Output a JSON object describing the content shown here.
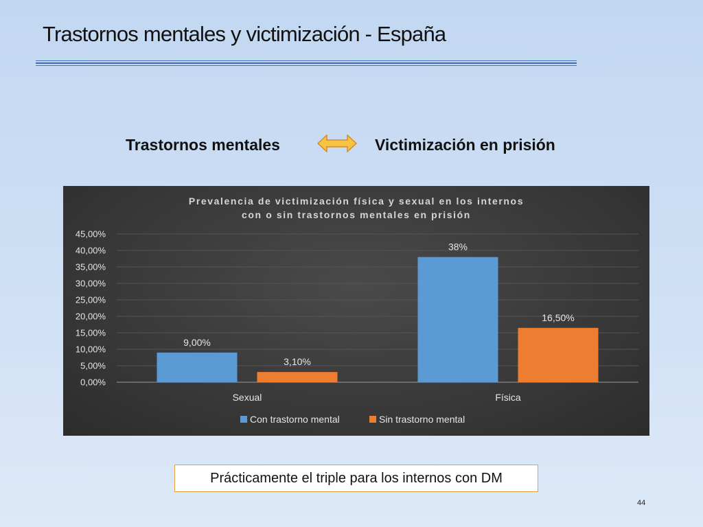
{
  "slide": {
    "title": "Trastornos mentales y victimización - España",
    "left_concept": "Trastornos mentales",
    "right_concept": "Victimización en prisión",
    "note": "Prácticamente el triple para los internos con DM",
    "page_number": "44"
  },
  "colors": {
    "accent_rule": "#3f69b3",
    "arrow_fill": "#f6c343",
    "arrow_stroke": "#d98a2b",
    "series_con": "#5b9bd5",
    "series_sin": "#ed7d31"
  },
  "icons": {
    "double_arrow": "left-right-arrow-icon"
  },
  "chart_data": {
    "type": "bar",
    "title_lines": [
      "Prevalencia de victimización física y sexual en los internos",
      "con o sin trastornos mentales en prisión"
    ],
    "categories": [
      "Sexual",
      "Física"
    ],
    "series": [
      {
        "name": "Con trastorno mental",
        "values": [
          9.0,
          38.0
        ],
        "labels": [
          "9,00%",
          "38%"
        ],
        "color": "#5b9bd5"
      },
      {
        "name": "Sin trastorno mental",
        "values": [
          3.1,
          16.5
        ],
        "labels": [
          "3,10%",
          "16,50%"
        ],
        "color": "#ed7d31"
      }
    ],
    "yticks": [
      "0,00%",
      "5,00%",
      "10,00%",
      "15,00%",
      "20,00%",
      "25,00%",
      "30,00%",
      "35,00%",
      "40,00%",
      "45,00%"
    ],
    "ylim": [
      0,
      45
    ],
    "grid": true,
    "legend_position": "bottom"
  }
}
